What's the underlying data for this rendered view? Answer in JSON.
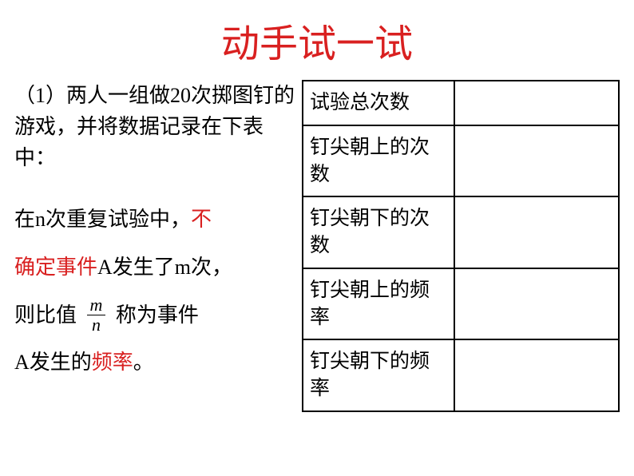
{
  "title": {
    "text": "动手试一试",
    "color": "#d92020",
    "fontsize": 48
  },
  "paragraph1": {
    "part1": "（1）两人一组做20次掷图钉的游戏，并将数据记录在下表中："
  },
  "paragraph2": {
    "line1_black": "在n次重复试验中，",
    "line1_red": "不",
    "line2_red": "确定事件",
    "line2_black": "A发生了m次，",
    "line3_black1": "则比值",
    "line3_black2": "称为事件",
    "line4_black1": "A发生的",
    "line4_red": "频率",
    "line4_black2": "。"
  },
  "fraction": {
    "numerator": "m",
    "denominator": "n"
  },
  "table": {
    "rows": [
      {
        "label": "试验总次数",
        "value": ""
      },
      {
        "label": "钉尖朝上的次数",
        "value": ""
      },
      {
        "label": "钉尖朝下的次数",
        "value": ""
      },
      {
        "label": "钉尖朝上的频率",
        "value": ""
      },
      {
        "label": "钉尖朝下的频率",
        "value": ""
      }
    ]
  },
  "colors": {
    "red": "#d92020",
    "black": "#000000",
    "background": "#ffffff",
    "border": "#000000"
  }
}
